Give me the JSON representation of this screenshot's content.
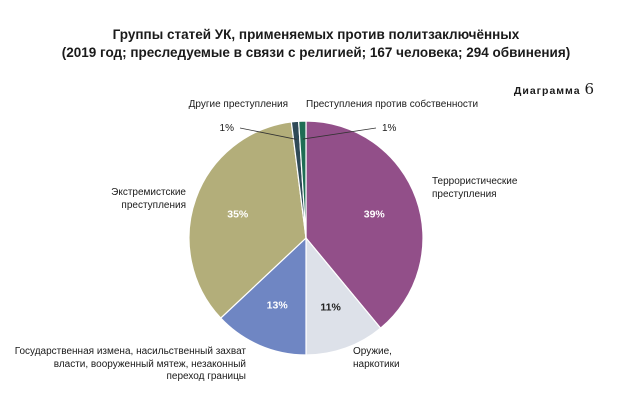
{
  "title_line1": "Группы статей УК, применяемых против политзаключённых",
  "title_line2": "(2019 год; преследуемые в связи с религией; 167 человека; 294 обвинения)",
  "diagram_label": "Диаграмма",
  "diagram_number": "6",
  "chart_data": {
    "type": "pie",
    "title": "Группы статей УК, применяемых против политзаключённых",
    "subtitle": "(2019 год; преследуемые в связи с религией; 167 человека; 294 обвинения)",
    "slices": [
      {
        "label": "Террористические преступления",
        "value": 39,
        "display": "39%",
        "color": "#924f89"
      },
      {
        "label": "Оружие, наркотики",
        "value": 11,
        "display": "11%",
        "color": "#dde1e9"
      },
      {
        "label": "Государственная измена, насильственный захват власти, вооруженный мятеж, незаконный переход границы",
        "value": 13,
        "display": "13%",
        "color": "#6f86c3"
      },
      {
        "label": "Экстремистские преступления",
        "value": 35,
        "display": "35%",
        "color": "#b3ae7a"
      },
      {
        "label": "Другие преступления",
        "value": 1,
        "display": "1%",
        "color": "#2f4a57"
      },
      {
        "label": "Преступления против собственности",
        "value": 1,
        "display": "1%",
        "color": "#1f6d54"
      }
    ]
  }
}
